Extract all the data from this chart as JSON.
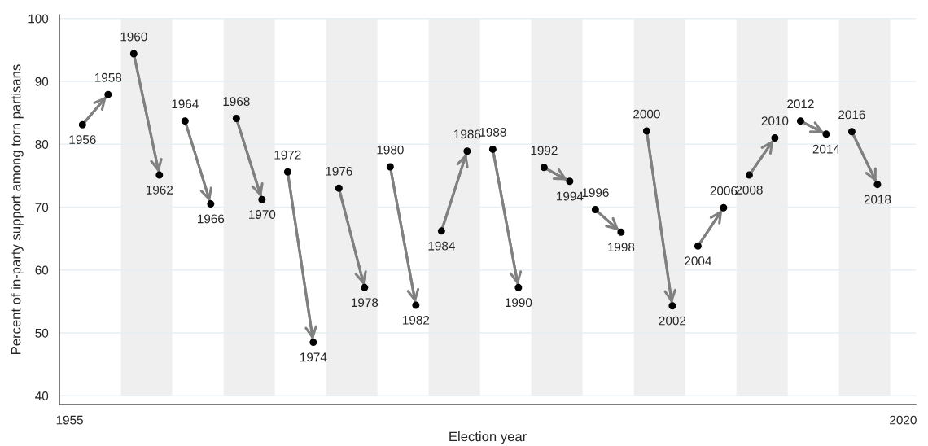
{
  "chart_data": {
    "type": "line",
    "xlabel": "Election year",
    "ylabel": "Percent of in-party support among torn partisans",
    "xlim": [
      1954.2,
      2021
    ],
    "xticks": [
      1955,
      2020
    ],
    "ylim": [
      38.6,
      100.6
    ],
    "yticks": [
      40,
      50,
      60,
      70,
      80,
      90,
      100
    ],
    "grid": "y",
    "marker": "circle",
    "line_style": "solid",
    "bands": [
      {
        "axis": "x",
        "from": 1959,
        "to": 1963,
        "color": "#efefef"
      },
      {
        "axis": "x",
        "from": 1967,
        "to": 1971,
        "color": "#efefef"
      },
      {
        "axis": "x",
        "from": 1975,
        "to": 1979,
        "color": "#efefef"
      },
      {
        "axis": "x",
        "from": 1983,
        "to": 1987,
        "color": "#efefef"
      },
      {
        "axis": "x",
        "from": 1991,
        "to": 1995,
        "color": "#efefef"
      },
      {
        "axis": "x",
        "from": 1999,
        "to": 2003,
        "color": "#efefef"
      },
      {
        "axis": "x",
        "from": 2007,
        "to": 2011,
        "color": "#efefef"
      },
      {
        "axis": "x",
        "from": 2015,
        "to": 2019,
        "color": "#efefef"
      }
    ],
    "series": [
      {
        "color": "#808080",
        "x": [
          1956,
          1958
        ],
        "values": [
          83.1,
          87.9
        ]
      },
      {
        "color": "#808080",
        "x": [
          1960,
          1962
        ],
        "values": [
          94.4,
          75.1
        ]
      },
      {
        "color": "#808080",
        "x": [
          1964,
          1966
        ],
        "values": [
          83.7,
          70.5
        ]
      },
      {
        "color": "#808080",
        "x": [
          1968,
          1970
        ],
        "values": [
          84.1,
          71.2
        ]
      },
      {
        "color": "#808080",
        "x": [
          1972,
          1974
        ],
        "values": [
          75.6,
          48.5
        ]
      },
      {
        "color": "#808080",
        "x": [
          1976,
          1978
        ],
        "values": [
          73.0,
          57.2
        ]
      },
      {
        "color": "#808080",
        "x": [
          1980,
          1982
        ],
        "values": [
          76.4,
          54.4
        ]
      },
      {
        "color": "#808080",
        "x": [
          1984,
          1986
        ],
        "values": [
          66.2,
          78.9
        ]
      },
      {
        "color": "#808080",
        "x": [
          1988,
          1990
        ],
        "values": [
          79.2,
          57.2
        ]
      },
      {
        "color": "#808080",
        "x": [
          1992,
          1994
        ],
        "values": [
          76.3,
          74.1
        ]
      },
      {
        "color": "#808080",
        "x": [
          1996,
          1998
        ],
        "values": [
          69.6,
          66.0
        ]
      },
      {
        "color": "#808080",
        "x": [
          2000,
          2002
        ],
        "values": [
          82.1,
          54.3
        ]
      },
      {
        "color": "#808080",
        "x": [
          2004,
          2006
        ],
        "values": [
          63.8,
          69.9
        ]
      },
      {
        "color": "#808080",
        "x": [
          2008,
          2010
        ],
        "values": [
          75.1,
          81.0
        ]
      },
      {
        "color": "#808080",
        "x": [
          2012,
          2014
        ],
        "values": [
          83.7,
          81.6
        ]
      },
      {
        "color": "#808080",
        "x": [
          2016,
          2018
        ],
        "values": [
          82.0,
          73.6
        ]
      }
    ],
    "annotations": [
      {
        "text": "1956",
        "x": 1956,
        "y": 83.1
      },
      {
        "text": "1958",
        "x": 1958,
        "y": 87.9
      },
      {
        "text": "1960",
        "x": 1960,
        "y": 94.4
      },
      {
        "text": "1962",
        "x": 1962,
        "y": 75.1
      },
      {
        "text": "1964",
        "x": 1964,
        "y": 83.7
      },
      {
        "text": "1966",
        "x": 1966,
        "y": 70.5
      },
      {
        "text": "1968",
        "x": 1968,
        "y": 84.1
      },
      {
        "text": "1970",
        "x": 1970,
        "y": 71.2
      },
      {
        "text": "1972",
        "x": 1972,
        "y": 75.6
      },
      {
        "text": "1974",
        "x": 1974,
        "y": 48.5
      },
      {
        "text": "1976",
        "x": 1976,
        "y": 73.0
      },
      {
        "text": "1978",
        "x": 1978,
        "y": 57.2
      },
      {
        "text": "1980",
        "x": 1980,
        "y": 76.4
      },
      {
        "text": "1982",
        "x": 1982,
        "y": 54.4
      },
      {
        "text": "1984",
        "x": 1984,
        "y": 66.2
      },
      {
        "text": "1986",
        "x": 1986,
        "y": 78.9
      },
      {
        "text": "1988",
        "x": 1988,
        "y": 79.2
      },
      {
        "text": "1990",
        "x": 1990,
        "y": 57.2
      },
      {
        "text": "1992",
        "x": 1992,
        "y": 76.3
      },
      {
        "text": "1994",
        "x": 1994,
        "y": 74.1
      },
      {
        "text": "1996",
        "x": 1996,
        "y": 69.6
      },
      {
        "text": "1998",
        "x": 1998,
        "y": 66.0
      },
      {
        "text": "2000",
        "x": 2000,
        "y": 82.1
      },
      {
        "text": "2002",
        "x": 2002,
        "y": 54.3
      },
      {
        "text": "2004",
        "x": 2004,
        "y": 63.8
      },
      {
        "text": "2006",
        "x": 2006,
        "y": 69.9
      },
      {
        "text": "2008",
        "x": 2008,
        "y": 75.1
      },
      {
        "text": "2010",
        "x": 2010,
        "y": 81.0
      },
      {
        "text": "2012",
        "x": 2012,
        "y": 83.7
      },
      {
        "text": "2014",
        "x": 2014,
        "y": 81.6
      },
      {
        "text": "2016",
        "x": 2016,
        "y": 82.0
      },
      {
        "text": "2018",
        "x": 2018,
        "y": 73.6
      }
    ]
  }
}
